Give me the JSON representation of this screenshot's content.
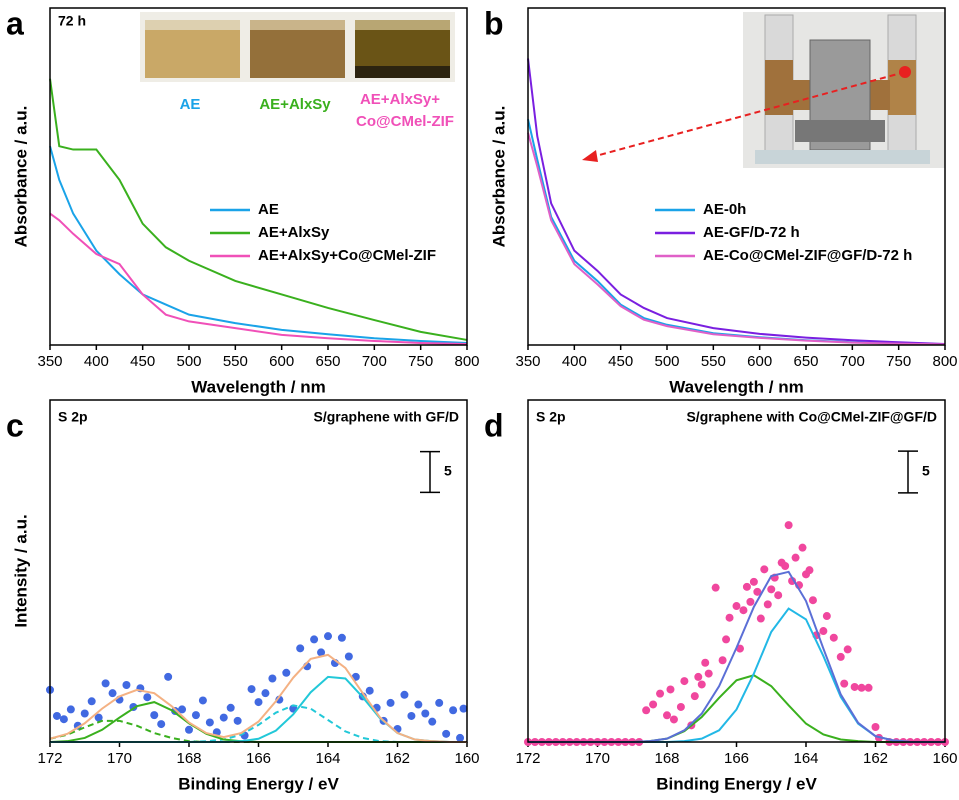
{
  "chart_data": [
    {
      "type": "line",
      "panel": "a",
      "annotation": "72 h",
      "inset_labels": [
        {
          "text": "AE",
          "color": "#1aa3e8"
        },
        {
          "text": "AE+AlxSy",
          "color": "#3ab01e"
        },
        {
          "text": "AE+AlxSy+",
          "color": "#f050b8"
        },
        {
          "text": "Co@CMel-ZIF",
          "color": "#f050b8"
        }
      ],
      "xlabel": "Wavelength / nm",
      "ylabel": "Absorbance / a.u.",
      "xlim": [
        350,
        800
      ],
      "xticks": [
        350,
        400,
        450,
        500,
        550,
        600,
        650,
        700,
        750,
        800
      ],
      "ylim": [
        0,
        100
      ],
      "x": [
        350,
        360,
        375,
        400,
        425,
        450,
        475,
        500,
        550,
        600,
        650,
        700,
        750,
        800
      ],
      "series": [
        {
          "name": "AE",
          "color": "#1aa3e8",
          "values": [
            59,
            49,
            39,
            28,
            21,
            15,
            12,
            9,
            6.5,
            4.5,
            3.2,
            2,
            1.2,
            0.6
          ]
        },
        {
          "name": "AE+AlxSy",
          "color": "#3ab01e",
          "values": [
            79,
            59,
            58,
            58,
            49,
            36,
            29,
            25,
            19,
            15,
            11,
            7.4,
            3.9,
            1.5
          ]
        },
        {
          "name": "AE+AlxSy+Co@CMel-ZIF",
          "color": "#f050b8",
          "values": [
            39,
            37,
            33,
            27,
            24,
            15,
            9,
            7,
            5,
            3,
            2,
            1.2,
            0.6,
            0.3
          ]
        }
      ]
    },
    {
      "type": "line",
      "panel": "b",
      "xlabel": "Wavelength / nm",
      "ylabel": "Absorbance / a.u.",
      "xlim": [
        350,
        800
      ],
      "xticks": [
        350,
        400,
        450,
        500,
        550,
        600,
        650,
        700,
        750,
        800
      ],
      "ylim": [
        0,
        100
      ],
      "x": [
        350,
        360,
        375,
        400,
        425,
        450,
        475,
        500,
        550,
        600,
        650,
        700,
        750,
        800
      ],
      "series": [
        {
          "name": "AE-0h",
          "color": "#1aa3e8",
          "values": [
            67,
            55,
            38,
            25,
            19,
            12,
            8,
            6,
            3.5,
            2.3,
            1.4,
            0.8,
            0.4,
            0.2
          ]
        },
        {
          "name": "AE-GF/D-72 h",
          "color": "#7a1fe0",
          "values": [
            85,
            62,
            42,
            28,
            22,
            15,
            11,
            8,
            5,
            3.3,
            2.2,
            1.4,
            0.8,
            0.3
          ]
        },
        {
          "name": "AE-Co@CMel-ZIF@GF/D-72 h",
          "color": "#e060c8",
          "values": [
            63,
            53,
            37,
            24,
            18,
            11.5,
            7.5,
            5.6,
            3.2,
            2.1,
            1.3,
            0.7,
            0.4,
            0.2
          ]
        }
      ]
    },
    {
      "type": "scatter",
      "panel": "c",
      "annotation": "S 2p",
      "subtitle": "S/graphene with GF/D",
      "scale_bar": 5,
      "xlabel": "Binding Energy / eV",
      "ylabel": "Intensity / a.u.",
      "xlim": [
        172,
        160
      ],
      "xticks": [
        172,
        170,
        168,
        166,
        164,
        162,
        160
      ],
      "ylim": [
        0,
        42
      ],
      "points": {
        "color": "#4169e1",
        "x": [
          172,
          171.8,
          171.6,
          171.4,
          171.2,
          171,
          170.8,
          170.6,
          170.4,
          170.2,
          170,
          169.8,
          169.6,
          169.4,
          169.2,
          169,
          168.8,
          168.6,
          168.4,
          168.2,
          168,
          167.8,
          167.6,
          167.4,
          167.2,
          167,
          166.8,
          166.6,
          166.4,
          166.2,
          166,
          165.8,
          165.6,
          165.4,
          165.2,
          165,
          164.8,
          164.6,
          164.4,
          164.2,
          164,
          163.8,
          163.6,
          163.4,
          163.2,
          163,
          162.8,
          162.6,
          162.4,
          162.2,
          162,
          161.8,
          161.6,
          161.4,
          161.2,
          161,
          160.8,
          160.6,
          160.4,
          160.2,
          160.1
        ],
        "y": [
          6.4,
          3.2,
          2.8,
          4.0,
          2.0,
          3.5,
          5.0,
          3.0,
          7.2,
          6.0,
          5.2,
          7.0,
          4.3,
          6.6,
          5.5,
          3.3,
          2.2,
          8.0,
          3.8,
          4.0,
          1.5,
          3.3,
          5.1,
          2.4,
          1.2,
          3.0,
          4.2,
          2.6,
          0.8,
          6.5,
          4.9,
          6.0,
          7.8,
          5.2,
          8.5,
          4.1,
          11.5,
          9.3,
          12.6,
          11.0,
          13.0,
          9.7,
          12.8,
          10.5,
          8.0,
          5.6,
          6.3,
          4.2,
          2.6,
          4.8,
          1.6,
          5.8,
          3.2,
          4.6,
          3.5,
          2.5,
          4.8,
          1.0,
          3.9,
          0.5,
          4.1
        ]
      },
      "fit_x": [
        172,
        171.5,
        171,
        170.5,
        170,
        169.5,
        169,
        168.5,
        168,
        167.5,
        167,
        166.5,
        166,
        165.5,
        165,
        164.5,
        164,
        163.5,
        163,
        162.5,
        162,
        161.5,
        161,
        160.5,
        160
      ],
      "fits": [
        {
          "color": "#3ab01e",
          "dashed": true,
          "values": [
            0.4,
            0.9,
            1.8,
            2.6,
            2.6,
            2.0,
            1.1,
            0.5,
            0.1,
            0,
            0,
            0,
            0,
            0,
            0,
            0,
            0,
            0,
            0,
            0,
            0,
            0,
            0,
            0,
            0
          ]
        },
        {
          "color": "#22c8d8",
          "dashed": true,
          "values": [
            0,
            0,
            0,
            0,
            0,
            0,
            0,
            0,
            0,
            0.1,
            0.3,
            0.9,
            2.1,
            3.6,
            4.5,
            4.1,
            2.7,
            1.3,
            0.5,
            0.1,
            0,
            0,
            0,
            0,
            0
          ]
        },
        {
          "color": "#3ab01e",
          "dashed": false,
          "values": [
            0,
            0.1,
            0.5,
            1.5,
            3.0,
            4.4,
            4.9,
            3.9,
            2.3,
            1.0,
            0.3,
            0.1,
            0,
            0,
            0,
            0,
            0,
            0,
            0,
            0,
            0,
            0,
            0,
            0,
            0
          ]
        },
        {
          "color": "#22c8d8",
          "dashed": false,
          "values": [
            0,
            0,
            0,
            0,
            0,
            0,
            0,
            0,
            0,
            0,
            0,
            0.1,
            0.4,
            1.4,
            3.4,
            6.1,
            8.0,
            7.8,
            5.5,
            2.9,
            1.1,
            0.3,
            0.1,
            0,
            0
          ]
        },
        {
          "color": "#f4b183",
          "dashed": false,
          "values": [
            0.4,
            1.0,
            2.3,
            4.1,
            5.6,
            6.4,
            6.0,
            4.4,
            2.4,
            1.1,
            0.6,
            1.1,
            2.5,
            5.0,
            7.9,
            10.2,
            10.7,
            9.1,
            6.0,
            3.0,
            1.1,
            0.3,
            0.1,
            0,
            0
          ]
        }
      ]
    },
    {
      "type": "scatter",
      "panel": "d",
      "annotation": "S 2p",
      "subtitle": "S/graphene with Co@CMel-ZIF@GF/D",
      "scale_bar": 5,
      "xlabel": "Binding Energy / eV",
      "xlim": [
        172,
        160
      ],
      "xticks": [
        172,
        170,
        168,
        166,
        164,
        162,
        160
      ],
      "ylim": [
        0,
        41
      ],
      "points": {
        "color": "#f0479e",
        "x": [
          172,
          171.8,
          171.6,
          171.4,
          171.2,
          171,
          170.8,
          170.6,
          170.4,
          170.2,
          170,
          169.8,
          169.6,
          169.4,
          169.2,
          169,
          168.8,
          168.6,
          168.4,
          168.2,
          168.0,
          167.9,
          167.8,
          167.6,
          167.5,
          167.3,
          167.2,
          167.1,
          167,
          166.9,
          166.8,
          166.6,
          166.4,
          166.3,
          166.2,
          166,
          165.9,
          165.8,
          165.7,
          165.6,
          165.5,
          165.4,
          165.3,
          165.2,
          165.1,
          165,
          164.9,
          164.8,
          164.7,
          164.6,
          164.5,
          164.4,
          164.3,
          164.2,
          164.1,
          164,
          163.9,
          163.8,
          163.7,
          163.5,
          163.4,
          163.2,
          163.0,
          162.9,
          162.8,
          162.6,
          162.4,
          162.2,
          162.0,
          161.9,
          161.6,
          161.4,
          161.2,
          161,
          160.8,
          160.6,
          160.4,
          160.2,
          160
        ],
        "y": [
          0,
          0,
          0,
          0,
          0,
          0,
          0,
          0,
          0,
          0,
          0,
          0,
          0,
          0,
          0,
          0,
          0,
          3.8,
          4.5,
          5.8,
          3.2,
          6.3,
          2.7,
          4.2,
          7.3,
          2.0,
          5.5,
          7.8,
          6.9,
          9.5,
          8.2,
          18.5,
          9.8,
          12.3,
          14.9,
          16.3,
          11.2,
          15.8,
          18.6,
          16.8,
          19.2,
          18.0,
          14.8,
          20.7,
          16.5,
          18.3,
          19.7,
          17.6,
          21.5,
          21.1,
          26.0,
          19.3,
          22.1,
          18.8,
          23.3,
          20.1,
          20.6,
          17.0,
          12.8,
          13.3,
          15.1,
          12.5,
          10.2,
          7.0,
          11.1,
          6.6,
          6.5,
          6.5,
          1.8,
          0.5,
          0,
          0,
          0,
          0,
          0,
          0,
          0,
          0,
          0
        ]
      },
      "fit_x": [
        172,
        171.5,
        171,
        170.5,
        170,
        169.5,
        169,
        168.5,
        168,
        167.5,
        167,
        166.5,
        166,
        165.5,
        165,
        164.5,
        164,
        163.5,
        163,
        162.5,
        162,
        161.5,
        161,
        160.5,
        160
      ],
      "fits": [
        {
          "color": "#3ab01e",
          "dashed": false,
          "values": [
            0,
            0,
            0,
            0,
            0,
            0,
            0,
            0.1,
            0.4,
            1.3,
            3.0,
            5.3,
            7.4,
            8.0,
            6.7,
            4.4,
            2.2,
            0.9,
            0.3,
            0.1,
            0,
            0,
            0,
            0,
            0
          ]
        },
        {
          "color": "#22b8e6",
          "dashed": false,
          "values": [
            0,
            0,
            0,
            0,
            0,
            0,
            0,
            0,
            0,
            0.1,
            0.4,
            1.4,
            3.9,
            8.2,
            13.2,
            16.0,
            14.7,
            10.3,
            5.4,
            2.2,
            0.7,
            0.2,
            0,
            0,
            0
          ]
        },
        {
          "color": "#5b6fd6",
          "dashed": false,
          "values": [
            0,
            0,
            0,
            0,
            0,
            0,
            0,
            0.1,
            0.4,
            1.4,
            3.4,
            6.7,
            11.3,
            16.2,
            19.9,
            20.4,
            16.9,
            11.2,
            5.7,
            2.3,
            0.7,
            0.2,
            0,
            0,
            0
          ]
        }
      ]
    }
  ]
}
